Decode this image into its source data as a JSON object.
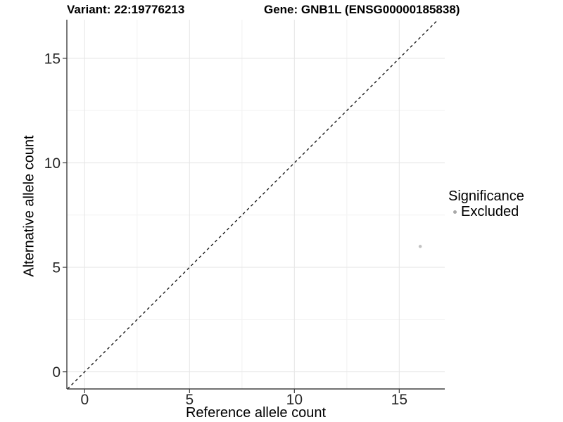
{
  "header": {
    "variant_title": "Variant: 22:19776213",
    "gene_title": "Gene: GNB1L (ENSG00000185838)"
  },
  "chart_data": {
    "type": "scatter",
    "titles": [
      "Variant: 22:19776213",
      "Gene: GNB1L (ENSG00000185838)"
    ],
    "xlabel": "Reference allele count",
    "ylabel": "Alternative allele count",
    "xlim": [
      -0.85,
      17.17
    ],
    "ylim": [
      -0.82,
      16.85
    ],
    "xticks": [
      0,
      5,
      10,
      15
    ],
    "yticks": [
      0,
      5,
      10,
      15
    ],
    "xminor": [
      2.5,
      7.5,
      12.5
    ],
    "yminor": [
      2.5,
      7.5,
      12.5
    ],
    "grid": "major and minor light-gray gridlines on white panel",
    "identity_line": {
      "style": "dashed",
      "equation": "y = x"
    },
    "series": [
      {
        "name": "Excluded",
        "color": "#c2c2c2",
        "points": [
          {
            "x": 16,
            "y": 6
          }
        ]
      }
    ],
    "legend": {
      "title": "Significance",
      "position": "right",
      "entries": [
        {
          "label": "Excluded",
          "color": "#a8a8a8"
        }
      ]
    }
  },
  "colors": {
    "background": "#ffffff",
    "axis_line": "#404040",
    "tick_mark": "#404040",
    "tick_label": "#262626",
    "grid_major": "#e7e7e7",
    "grid_minor": "#f2f2f2",
    "identity_line": "#1a1a1a",
    "point": "#c2c2c2",
    "legend_dot": "#a8a8a8"
  }
}
